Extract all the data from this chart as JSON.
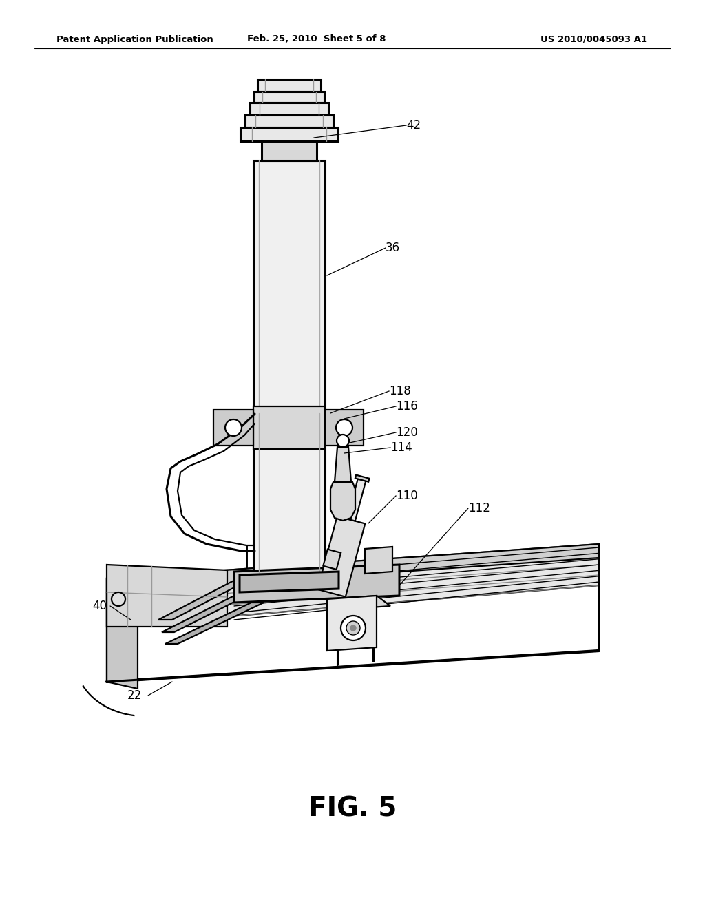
{
  "bg_color": "#ffffff",
  "header_left": "Patent Application Publication",
  "header_mid": "Feb. 25, 2010  Sheet 5 of 8",
  "header_right": "US 2010/0045093 A1",
  "figure_label": "FIG. 5",
  "text_color": "#000000",
  "lw_main": 1.6,
  "lw_thick": 2.2,
  "lw_thin": 1.0,
  "lw_vthick": 3.0
}
